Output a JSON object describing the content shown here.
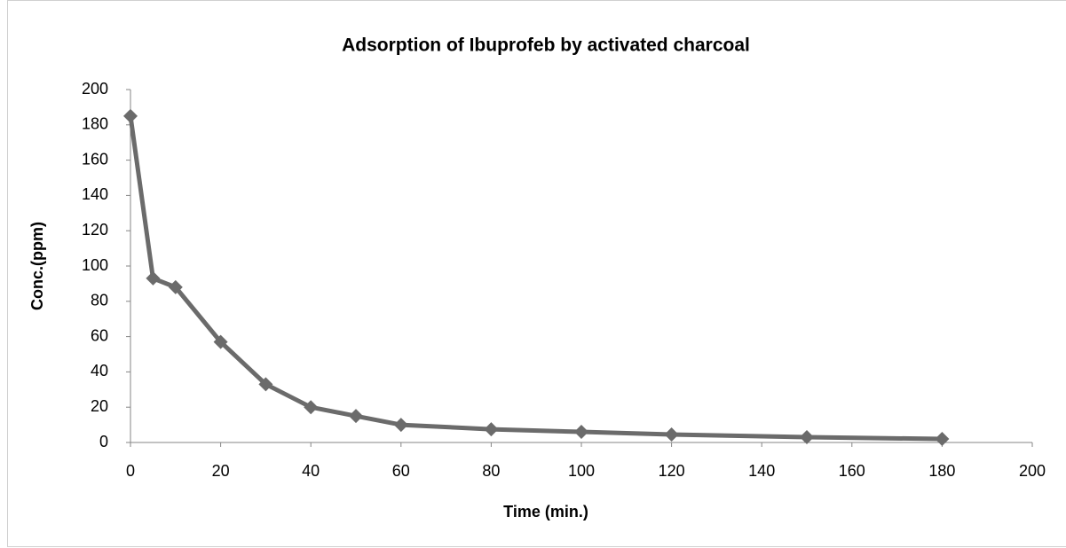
{
  "chart_data": {
    "type": "line",
    "title": "Adsorption of Ibuprofeb by activated charcoal",
    "x_label": "Time (min.)",
    "y_label": "Conc.(ppm)",
    "x": [
      0,
      5,
      10,
      20,
      30,
      40,
      50,
      60,
      80,
      100,
      120,
      150,
      180
    ],
    "series": [
      {
        "name": "Conc.",
        "color": "#6b6b6b",
        "values": [
          185,
          93,
          88,
          57,
          33,
          20,
          15,
          10,
          7.5,
          6,
          4.5,
          3,
          2
        ]
      }
    ],
    "xlim": [
      0,
      200
    ],
    "xticks": [
      0,
      20,
      40,
      60,
      80,
      100,
      120,
      140,
      160,
      180,
      200
    ],
    "ylim": [
      0,
      200
    ],
    "yticks": [
      0,
      20,
      40,
      60,
      80,
      100,
      120,
      140,
      160,
      180,
      200
    ],
    "grid": false
  }
}
